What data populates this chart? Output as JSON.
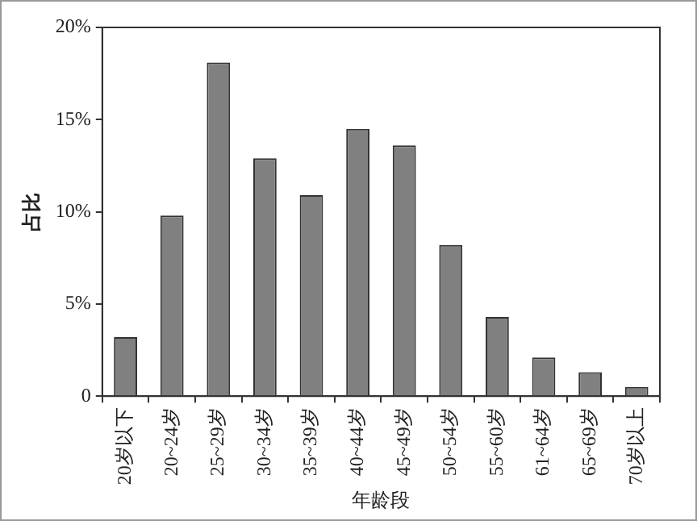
{
  "chart_data": {
    "type": "bar",
    "xlabel": "年龄段",
    "ylabel": "占比",
    "categories": [
      "20岁以下",
      "20~24岁",
      "25~29岁",
      "30~34岁",
      "35~39岁",
      "40~44岁",
      "45~49岁",
      "50~54岁",
      "55~60岁",
      "61~64岁",
      "65~69岁",
      "70岁以上"
    ],
    "values": [
      3.2,
      9.8,
      18.1,
      12.9,
      10.9,
      14.5,
      13.6,
      8.2,
      4.3,
      2.1,
      1.3,
      0.5
    ],
    "color": "#808080",
    "ylim": [
      0,
      20
    ],
    "yticks": [
      0,
      {
        "value": 5,
        "label": "5%"
      },
      {
        "value": 10,
        "label": "10%"
      },
      {
        "value": 15,
        "label": "15%"
      },
      {
        "value": 20,
        "label": "20%"
      }
    ],
    "grid": false,
    "legend": false
  }
}
